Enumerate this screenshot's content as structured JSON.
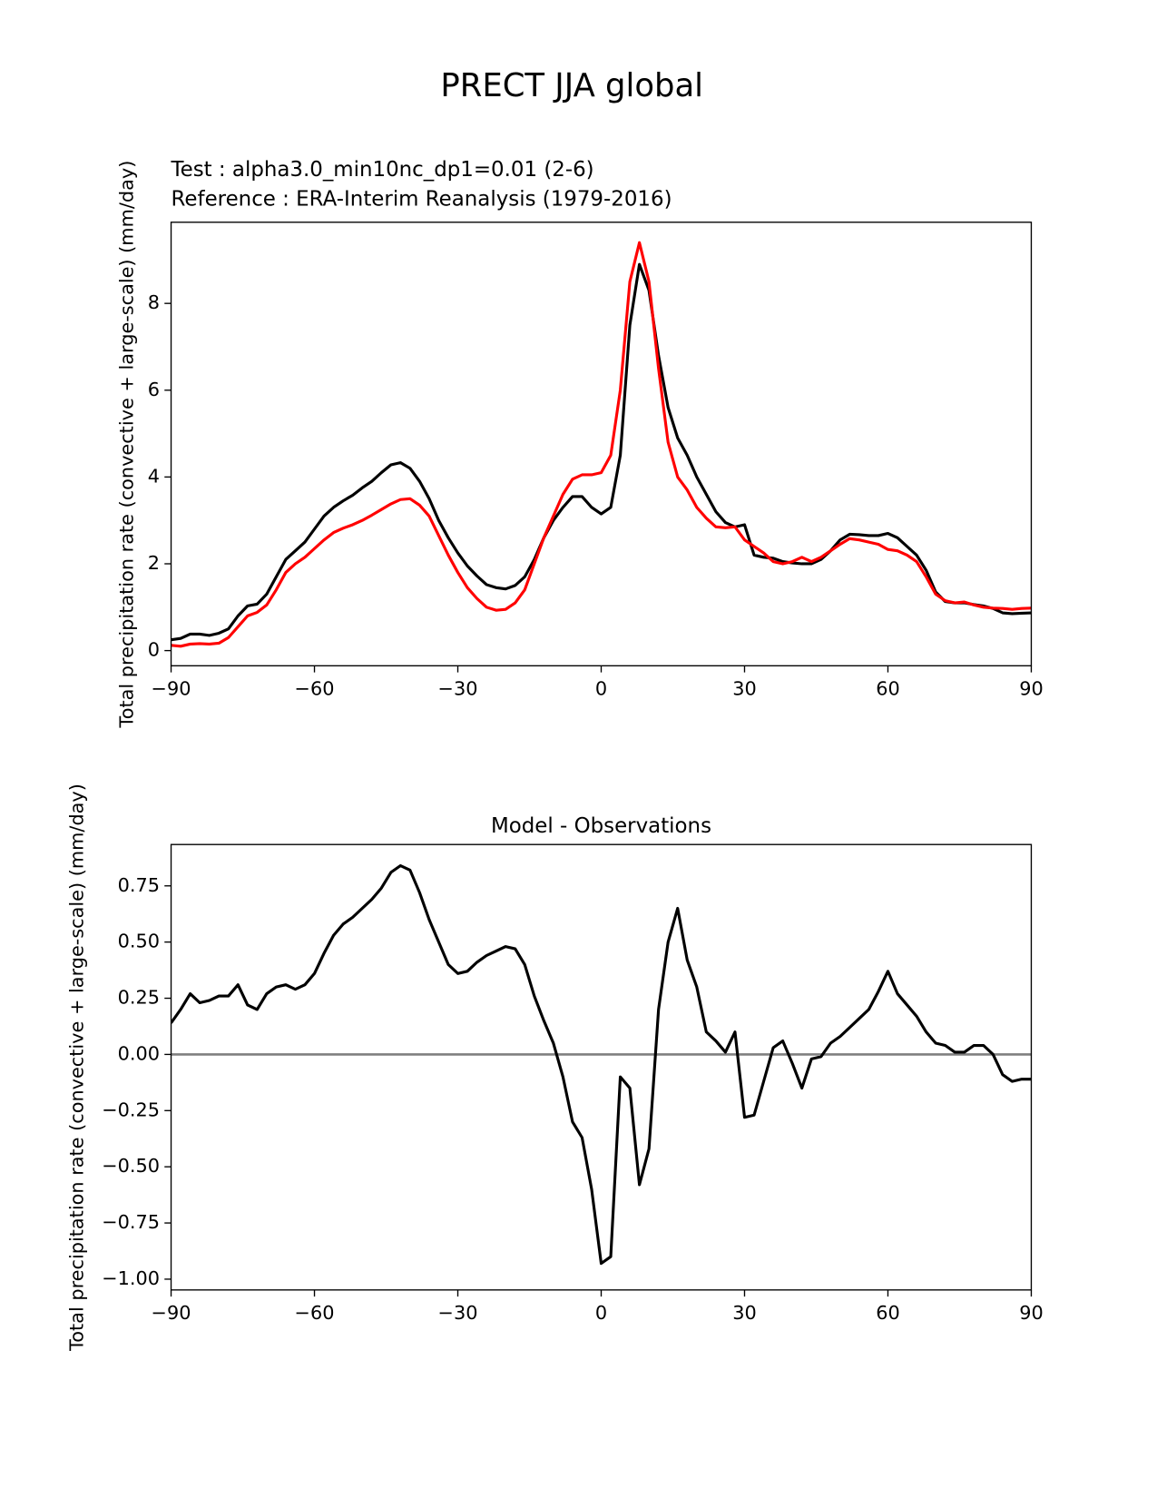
{
  "title": "PRECT JJA global",
  "chart_data": [
    {
      "type": "line",
      "ylabel": "Total precipitation rate (convective + large-scale) (mm/day)",
      "x": [
        -90,
        -88,
        -86,
        -84,
        -82,
        -80,
        -78,
        -76,
        -74,
        -72,
        -70,
        -68,
        -66,
        -64,
        -62,
        -60,
        -58,
        -56,
        -54,
        -52,
        -50,
        -48,
        -46,
        -44,
        -42,
        -40,
        -38,
        -36,
        -34,
        -32,
        -30,
        -28,
        -26,
        -24,
        -22,
        -20,
        -18,
        -16,
        -14,
        -12,
        -10,
        -8,
        -6,
        -4,
        -2,
        0,
        2,
        4,
        6,
        8,
        10,
        12,
        14,
        16,
        18,
        20,
        22,
        24,
        26,
        28,
        30,
        32,
        34,
        36,
        38,
        40,
        42,
        44,
        46,
        48,
        50,
        52,
        54,
        56,
        58,
        60,
        62,
        64,
        66,
        68,
        70,
        72,
        74,
        76,
        78,
        80,
        82,
        84,
        86,
        88,
        90
      ],
      "series": [
        {
          "name": "Test : alpha3.0_min10nc_dp1=0.01 (2-6)",
          "color": "#000000",
          "values": [
            0.25,
            0.28,
            0.38,
            0.38,
            0.35,
            0.4,
            0.5,
            0.8,
            1.03,
            1.07,
            1.3,
            1.7,
            2.1,
            2.3,
            2.5,
            2.8,
            3.1,
            3.3,
            3.45,
            3.58,
            3.75,
            3.9,
            4.1,
            4.28,
            4.33,
            4.2,
            3.9,
            3.5,
            3.0,
            2.6,
            2.25,
            1.95,
            1.72,
            1.52,
            1.45,
            1.42,
            1.5,
            1.7,
            2.1,
            2.6,
            3.0,
            3.3,
            3.55,
            3.55,
            3.3,
            3.15,
            3.3,
            4.5,
            7.5,
            8.9,
            8.3,
            6.8,
            5.6,
            4.9,
            4.5,
            4.0,
            3.6,
            3.2,
            2.95,
            2.85,
            2.9,
            2.2,
            2.15,
            2.13,
            2.05,
            2.02,
            2.0,
            2.0,
            2.1,
            2.3,
            2.55,
            2.68,
            2.67,
            2.65,
            2.65,
            2.7,
            2.6,
            2.4,
            2.2,
            1.85,
            1.35,
            1.13,
            1.1,
            1.1,
            1.06,
            1.03,
            0.97,
            0.87,
            0.85,
            0.86,
            0.87
          ]
        },
        {
          "name": "Reference : ERA-Interim Reanalysis (1979-2016)",
          "color": "#ff0000",
          "values": [
            0.12,
            0.1,
            0.15,
            0.16,
            0.15,
            0.17,
            0.3,
            0.55,
            0.8,
            0.88,
            1.05,
            1.4,
            1.8,
            2.0,
            2.15,
            2.35,
            2.55,
            2.72,
            2.82,
            2.9,
            3.0,
            3.12,
            3.25,
            3.38,
            3.48,
            3.5,
            3.35,
            3.1,
            2.65,
            2.2,
            1.8,
            1.45,
            1.2,
            1.0,
            0.93,
            0.95,
            1.1,
            1.4,
            2.0,
            2.6,
            3.1,
            3.6,
            3.95,
            4.05,
            4.05,
            4.1,
            4.5,
            6.0,
            8.5,
            9.4,
            8.5,
            6.5,
            4.8,
            4.0,
            3.7,
            3.3,
            3.05,
            2.85,
            2.83,
            2.85,
            2.55,
            2.4,
            2.25,
            2.05,
            2.0,
            2.05,
            2.15,
            2.05,
            2.15,
            2.3,
            2.45,
            2.58,
            2.55,
            2.5,
            2.45,
            2.33,
            2.3,
            2.2,
            2.05,
            1.7,
            1.3,
            1.15,
            1.1,
            1.12,
            1.05,
            1.0,
            0.98,
            0.97,
            0.95,
            0.97,
            0.98
          ]
        }
      ],
      "xlim": [
        -90,
        90
      ],
      "xticks": [
        {
          "value": -90,
          "label": "−90"
        },
        {
          "value": -60,
          "label": "−60"
        },
        {
          "value": -30,
          "label": "−30"
        },
        0,
        30,
        60,
        90
      ],
      "ylim": [
        -0.35,
        9.87
      ],
      "yticks": [
        0,
        2,
        4,
        6,
        8
      ],
      "grid": false
    },
    {
      "type": "line",
      "title": "Model - Observations",
      "ylabel": "Total precipitation rate (convective + large-scale) (mm/day)",
      "x": [
        -90,
        -88,
        -86,
        -84,
        -82,
        -80,
        -78,
        -76,
        -74,
        -72,
        -70,
        -68,
        -66,
        -64,
        -62,
        -60,
        -58,
        -56,
        -54,
        -52,
        -50,
        -48,
        -46,
        -44,
        -42,
        -40,
        -38,
        -36,
        -34,
        -32,
        -30,
        -28,
        -26,
        -24,
        -22,
        -20,
        -18,
        -16,
        -14,
        -12,
        -10,
        -8,
        -6,
        -4,
        -2,
        0,
        2,
        4,
        6,
        8,
        10,
        12,
        14,
        16,
        18,
        20,
        22,
        24,
        26,
        28,
        30,
        32,
        34,
        36,
        38,
        40,
        42,
        44,
        46,
        48,
        50,
        52,
        54,
        56,
        58,
        60,
        62,
        64,
        66,
        68,
        70,
        72,
        74,
        76,
        78,
        80,
        82,
        84,
        86,
        88,
        90
      ],
      "series": [
        {
          "color": "#000000",
          "values": [
            0.14,
            0.2,
            0.27,
            0.23,
            0.24,
            0.26,
            0.26,
            0.31,
            0.22,
            0.2,
            0.27,
            0.3,
            0.31,
            0.29,
            0.31,
            0.36,
            0.45,
            0.53,
            0.58,
            0.61,
            0.65,
            0.69,
            0.74,
            0.81,
            0.84,
            0.82,
            0.72,
            0.6,
            0.5,
            0.4,
            0.36,
            0.37,
            0.41,
            0.44,
            0.46,
            0.48,
            0.47,
            0.4,
            0.26,
            0.15,
            0.05,
            -0.1,
            -0.3,
            -0.37,
            -0.6,
            -0.93,
            -0.9,
            -0.1,
            -0.15,
            -0.58,
            -0.42,
            0.2,
            0.5,
            0.65,
            0.42,
            0.3,
            0.1,
            0.06,
            0.01,
            0.1,
            -0.28,
            -0.27,
            -0.12,
            0.03,
            0.06,
            -0.04,
            -0.15,
            -0.02,
            -0.01,
            0.05,
            0.08,
            0.12,
            0.16,
            0.2,
            0.28,
            0.37,
            0.27,
            0.22,
            0.17,
            0.1,
            0.05,
            0.04,
            0.01,
            0.01,
            0.04,
            0.04,
            0.0,
            -0.09,
            -0.12,
            -0.11,
            -0.11
          ]
        }
      ],
      "hline": 0,
      "hline_color": "#808080",
      "xlim": [
        -90,
        90
      ],
      "xticks": [
        {
          "value": -90,
          "label": "−90"
        },
        {
          "value": -60,
          "label": "−60"
        },
        {
          "value": -30,
          "label": "−30"
        },
        0,
        30,
        60,
        90
      ],
      "ylim": [
        -1.048,
        0.934
      ],
      "yticks": [
        {
          "value": -1.0,
          "label": "−1.00"
        },
        {
          "value": -0.75,
          "label": "−0.75"
        },
        {
          "value": -0.5,
          "label": "−0.50"
        },
        {
          "value": -0.25,
          "label": "−0.25"
        },
        {
          "value": 0,
          "label": "0.00"
        },
        {
          "value": 0.25,
          "label": "0.25"
        },
        {
          "value": 0.5,
          "label": "0.50"
        },
        {
          "value": 0.75,
          "label": "0.75"
        }
      ],
      "grid": false
    }
  ]
}
